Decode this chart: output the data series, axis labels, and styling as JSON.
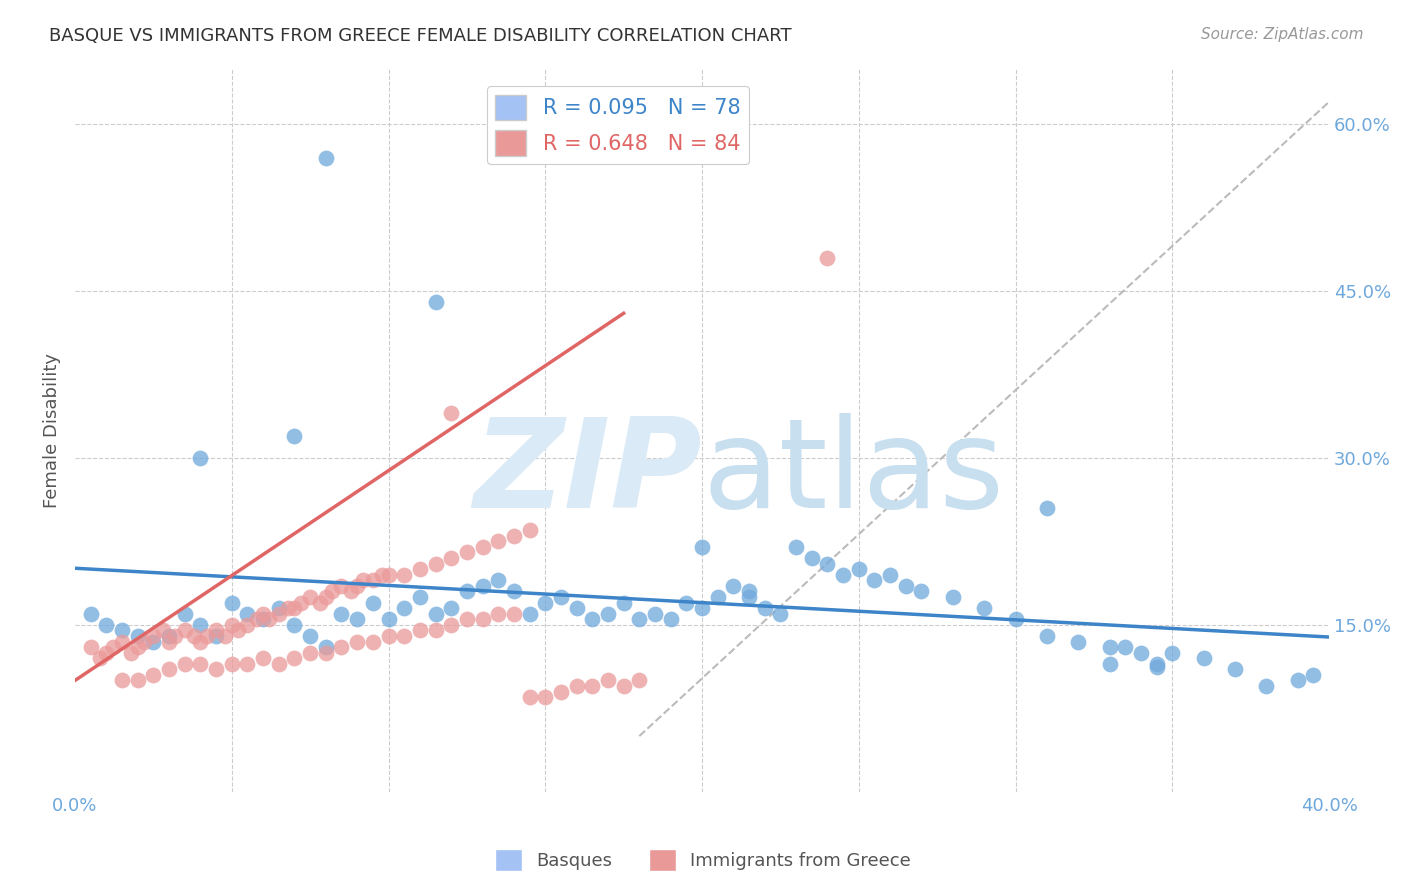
{
  "title": "BASQUE VS IMMIGRANTS FROM GREECE FEMALE DISABILITY CORRELATION CHART",
  "source": "Source: ZipAtlas.com",
  "ylabel": "Female Disability",
  "xlim": [
    0.0,
    0.4
  ],
  "ylim": [
    0.0,
    0.65
  ],
  "yticks_right": [
    0.15,
    0.3,
    0.45,
    0.6
  ],
  "ytick_right_labels": [
    "15.0%",
    "30.0%",
    "45.0%",
    "60.0%"
  ],
  "basque_color": "#6fa8dc",
  "greece_color": "#ea9999",
  "basque_R": 0.095,
  "basque_N": 78,
  "greece_R": 0.648,
  "greece_N": 84,
  "background_color": "#ffffff",
  "grid_color": "#cccccc",
  "tick_color": "#6fa8dc",
  "legend_box_color_basque": "#a4c2f4",
  "legend_box_color_greece": "#ea9999",
  "watermark_color": "#daeaf7",
  "basque_line_color": "#3d85c8",
  "greece_line_color": "#e06666",
  "diag_line_color": "#bbbbbb",
  "basque_points_x": [
    0.08,
    0.115,
    0.07,
    0.04,
    0.31,
    0.33,
    0.345,
    0.38,
    0.2,
    0.215,
    0.005,
    0.01,
    0.015,
    0.02,
    0.025,
    0.03,
    0.035,
    0.04,
    0.045,
    0.05,
    0.055,
    0.06,
    0.065,
    0.07,
    0.075,
    0.08,
    0.085,
    0.09,
    0.095,
    0.1,
    0.105,
    0.11,
    0.115,
    0.12,
    0.125,
    0.13,
    0.135,
    0.14,
    0.145,
    0.15,
    0.155,
    0.16,
    0.165,
    0.17,
    0.175,
    0.18,
    0.185,
    0.19,
    0.195,
    0.2,
    0.205,
    0.21,
    0.215,
    0.22,
    0.225,
    0.23,
    0.235,
    0.24,
    0.245,
    0.25,
    0.255,
    0.26,
    0.265,
    0.27,
    0.28,
    0.29,
    0.3,
    0.31,
    0.32,
    0.33,
    0.335,
    0.34,
    0.345,
    0.35,
    0.36,
    0.37,
    0.39,
    0.395
  ],
  "basque_points_y": [
    0.57,
    0.44,
    0.32,
    0.3,
    0.255,
    0.115,
    0.112,
    0.095,
    0.22,
    0.18,
    0.16,
    0.15,
    0.145,
    0.14,
    0.135,
    0.14,
    0.16,
    0.15,
    0.14,
    0.17,
    0.16,
    0.155,
    0.165,
    0.15,
    0.14,
    0.13,
    0.16,
    0.155,
    0.17,
    0.155,
    0.165,
    0.175,
    0.16,
    0.165,
    0.18,
    0.185,
    0.19,
    0.18,
    0.16,
    0.17,
    0.175,
    0.165,
    0.155,
    0.16,
    0.17,
    0.155,
    0.16,
    0.155,
    0.17,
    0.165,
    0.175,
    0.185,
    0.175,
    0.165,
    0.16,
    0.22,
    0.21,
    0.205,
    0.195,
    0.2,
    0.19,
    0.195,
    0.185,
    0.18,
    0.175,
    0.165,
    0.155,
    0.14,
    0.135,
    0.13,
    0.13,
    0.125,
    0.115,
    0.125,
    0.12,
    0.11,
    0.1,
    0.105
  ],
  "greece_points_x": [
    0.24,
    0.12,
    0.005,
    0.008,
    0.01,
    0.012,
    0.015,
    0.018,
    0.02,
    0.022,
    0.025,
    0.028,
    0.03,
    0.032,
    0.035,
    0.038,
    0.04,
    0.042,
    0.045,
    0.048,
    0.05,
    0.052,
    0.055,
    0.058,
    0.06,
    0.062,
    0.065,
    0.068,
    0.07,
    0.072,
    0.075,
    0.078,
    0.08,
    0.082,
    0.085,
    0.088,
    0.09,
    0.092,
    0.095,
    0.098,
    0.1,
    0.105,
    0.11,
    0.115,
    0.12,
    0.125,
    0.13,
    0.135,
    0.14,
    0.145,
    0.015,
    0.02,
    0.025,
    0.03,
    0.035,
    0.04,
    0.045,
    0.05,
    0.055,
    0.06,
    0.065,
    0.07,
    0.075,
    0.08,
    0.085,
    0.09,
    0.095,
    0.1,
    0.105,
    0.11,
    0.115,
    0.12,
    0.125,
    0.13,
    0.135,
    0.14,
    0.145,
    0.15,
    0.155,
    0.16,
    0.165,
    0.17,
    0.175,
    0.18
  ],
  "greece_points_y": [
    0.48,
    0.34,
    0.13,
    0.12,
    0.125,
    0.13,
    0.135,
    0.125,
    0.13,
    0.135,
    0.14,
    0.145,
    0.135,
    0.14,
    0.145,
    0.14,
    0.135,
    0.14,
    0.145,
    0.14,
    0.15,
    0.145,
    0.15,
    0.155,
    0.16,
    0.155,
    0.16,
    0.165,
    0.165,
    0.17,
    0.175,
    0.17,
    0.175,
    0.18,
    0.185,
    0.18,
    0.185,
    0.19,
    0.19,
    0.195,
    0.195,
    0.195,
    0.2,
    0.205,
    0.21,
    0.215,
    0.22,
    0.225,
    0.23,
    0.235,
    0.1,
    0.1,
    0.105,
    0.11,
    0.115,
    0.115,
    0.11,
    0.115,
    0.115,
    0.12,
    0.115,
    0.12,
    0.125,
    0.125,
    0.13,
    0.135,
    0.135,
    0.14,
    0.14,
    0.145,
    0.145,
    0.15,
    0.155,
    0.155,
    0.16,
    0.16,
    0.085,
    0.085,
    0.09,
    0.095,
    0.095,
    0.1,
    0.095,
    0.1
  ]
}
